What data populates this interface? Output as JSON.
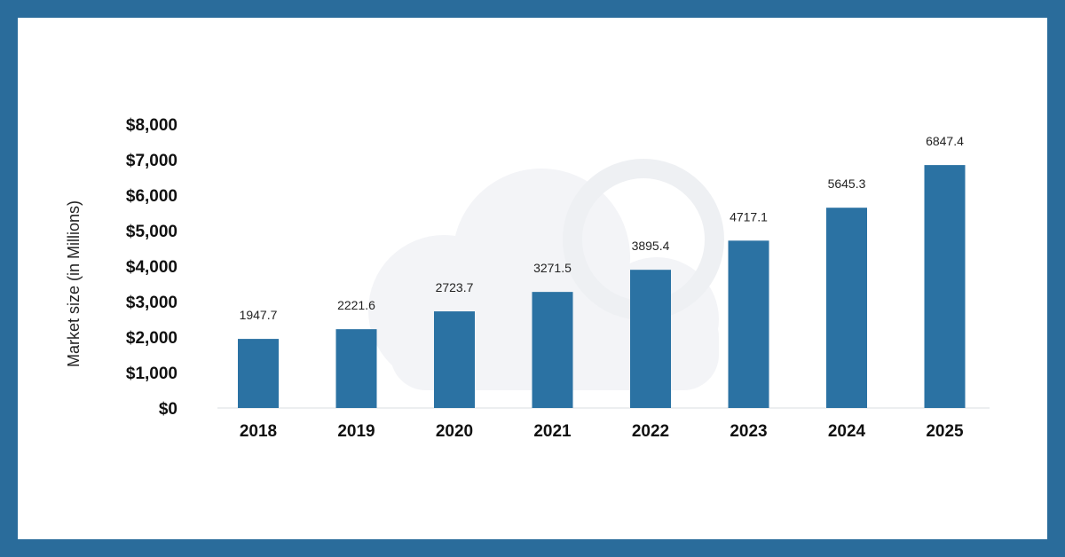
{
  "chart_data": {
    "type": "bar",
    "title": "",
    "xlabel": "",
    "ylabel": "Market size (in Millions)",
    "categories": [
      "2018",
      "2019",
      "2020",
      "2021",
      "2022",
      "2023",
      "2024",
      "2025"
    ],
    "values": [
      1947.7,
      2221.6,
      2723.7,
      3271.5,
      3895.4,
      4717.1,
      5645.3,
      6847.4
    ],
    "data_labels": [
      "1947.7",
      "2221.6",
      "2723.7",
      "3271.5",
      "3895.4",
      "4717.1",
      "5645.3",
      "6847.4"
    ],
    "ylim": [
      0,
      8000
    ],
    "yticks": [
      0,
      1000,
      2000,
      3000,
      4000,
      5000,
      6000,
      7000,
      8000
    ],
    "ytick_labels": [
      "$0",
      "$1,000",
      "$2,000",
      "$3,000",
      "$4,000",
      "$5,000",
      "$6,000",
      "$7,000",
      "$8,000"
    ],
    "grid": false,
    "legend": "none",
    "colors": {
      "bar": "#2b72a3",
      "frame": "#2a6c9b",
      "background": "#ffffff",
      "watermark": "#f3f4f6"
    }
  }
}
